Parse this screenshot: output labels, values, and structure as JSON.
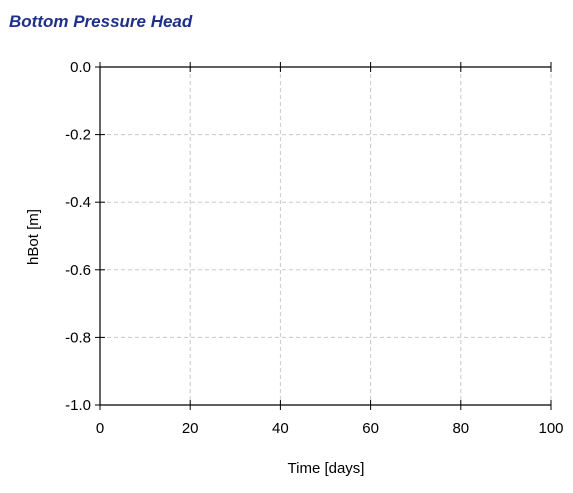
{
  "chart_data": {
    "type": "line",
    "title": "Bottom Pressure Head",
    "xlabel": "Time [days]",
    "ylabel": "hBot [m]",
    "xlim": [
      0,
      100
    ],
    "ylim": [
      -1.0,
      0.0
    ],
    "x_ticks": [
      "0",
      "20",
      "40",
      "60",
      "80",
      "100"
    ],
    "y_ticks": [
      "0.0",
      "-0.2",
      "-0.4",
      "-0.6",
      "-0.8",
      "-1.0"
    ],
    "grid": true,
    "series": [],
    "colors": {
      "title": "#1f2f8a",
      "axis": "#000000",
      "grid": "#c8c8c8"
    }
  }
}
